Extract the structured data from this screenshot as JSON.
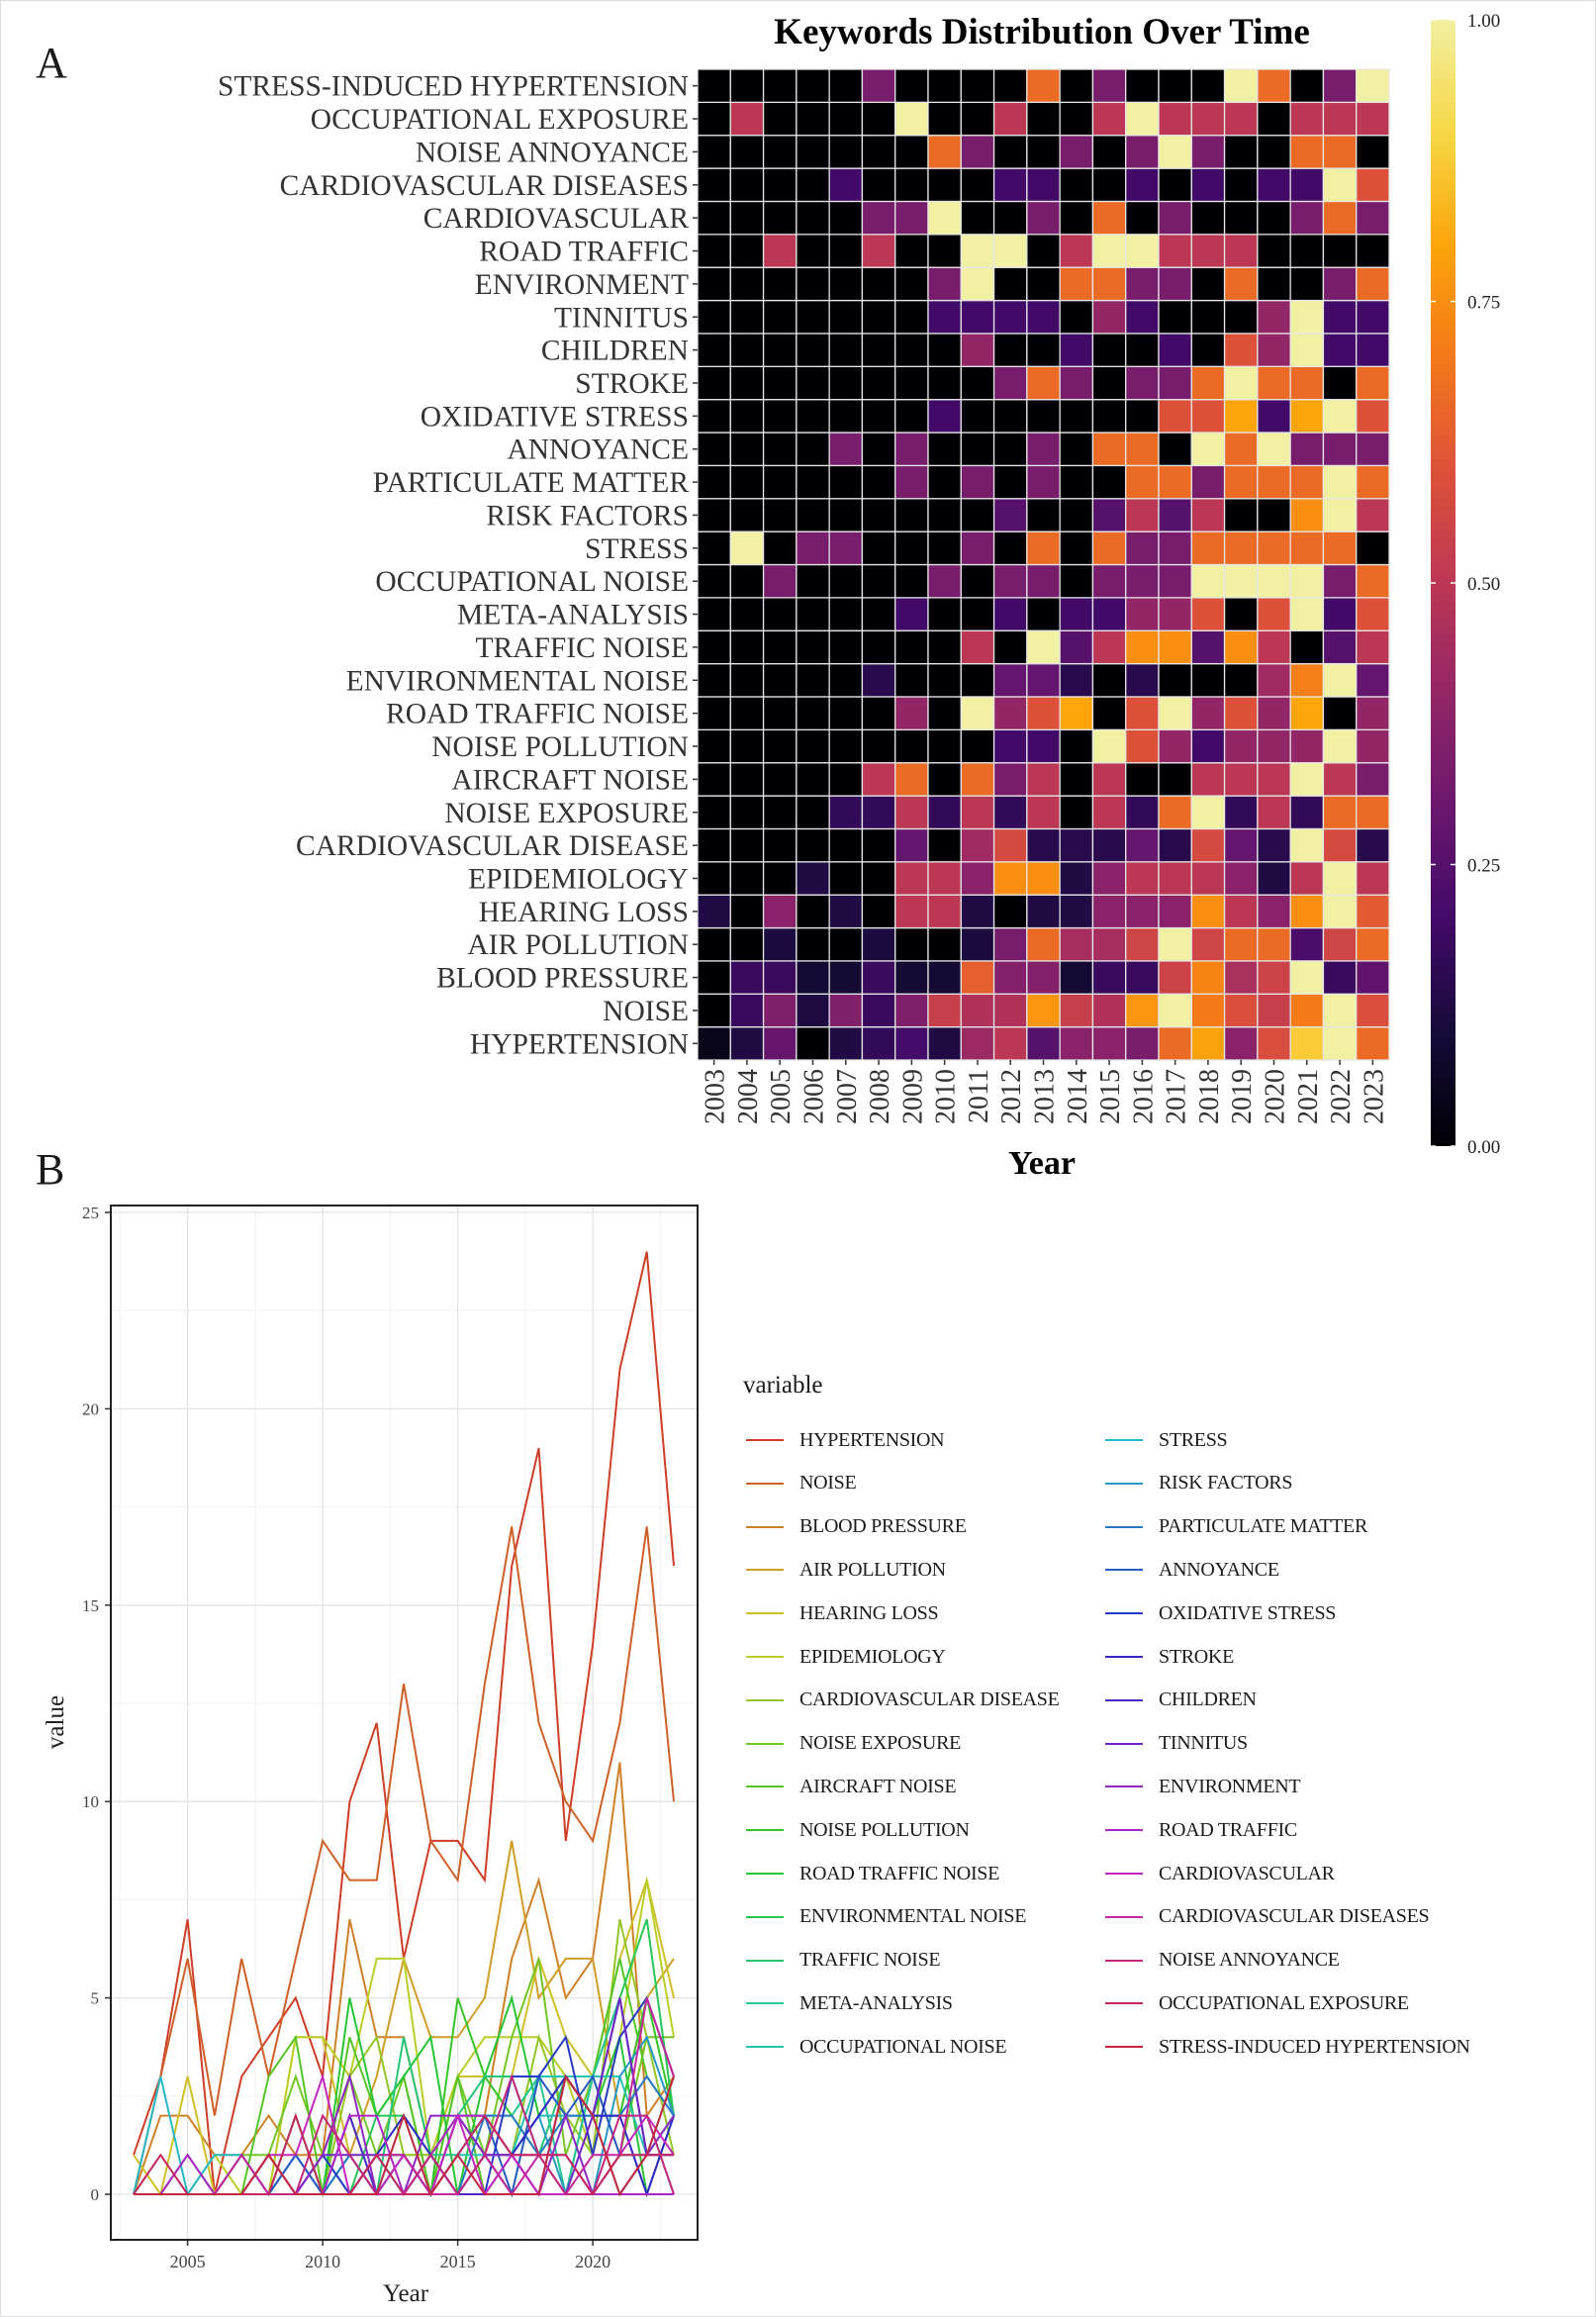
{
  "panels": {
    "a": "A",
    "b": "B"
  },
  "chart_data": [
    {
      "type": "heatmap",
      "title": "Keywords Distribution Over Time",
      "xlabel": "Year",
      "ylabel": "",
      "colorbar": {
        "ticks": [
          "0.00",
          "0.25",
          "0.50",
          "0.75",
          "1.00"
        ],
        "range": [
          0,
          1
        ],
        "palette": "inferno"
      },
      "note": "cell value = yearly count / series maximum (uses series in chart 2)"
    },
    {
      "type": "line",
      "xlabel": "Year",
      "ylabel": "value",
      "xlim": [
        2003,
        2023
      ],
      "ylim": [
        0,
        25
      ],
      "xticks": [
        "2005",
        "2010",
        "2015",
        "2020"
      ],
      "yticks": [
        "0",
        "5",
        "10",
        "15",
        "20",
        "25"
      ],
      "legend_title": "variable",
      "legend_position": "right",
      "grid": true
    }
  ],
  "years": [
    "2003",
    "2004",
    "2005",
    "2006",
    "2007",
    "2008",
    "2009",
    "2010",
    "2011",
    "2012",
    "2013",
    "2014",
    "2015",
    "2016",
    "2017",
    "2018",
    "2019",
    "2020",
    "2021",
    "2022",
    "2023"
  ],
  "series": [
    {
      "name": "HYPERTENSION",
      "values": [
        1,
        3,
        7,
        0,
        3,
        4,
        5,
        3,
        10,
        12,
        6,
        9,
        9,
        8,
        16,
        19,
        9,
        14,
        21,
        24,
        16
      ]
    },
    {
      "name": "NOISE",
      "values": [
        0,
        3,
        6,
        2,
        6,
        3,
        6,
        9,
        8,
        8,
        13,
        9,
        8,
        13,
        17,
        12,
        10,
        9,
        12,
        17,
        10
      ]
    },
    {
      "name": "BLOOD PRESSURE",
      "values": [
        0,
        2,
        2,
        1,
        1,
        2,
        1,
        1,
        7,
        4,
        4,
        1,
        2,
        2,
        6,
        8,
        5,
        6,
        11,
        2,
        3
      ]
    },
    {
      "name": "AIR POLLUTION",
      "values": [
        0,
        0,
        1,
        0,
        0,
        1,
        0,
        0,
        1,
        3,
        6,
        4,
        4,
        5,
        9,
        5,
        6,
        6,
        2,
        5,
        6
      ]
    },
    {
      "name": "HEARING LOSS",
      "values": [
        1,
        0,
        3,
        0,
        1,
        0,
        4,
        4,
        1,
        0,
        1,
        1,
        3,
        3,
        3,
        6,
        4,
        3,
        6,
        8,
        5
      ]
    },
    {
      "name": "EPIDEMIOLOGY",
      "values": [
        0,
        0,
        0,
        1,
        0,
        0,
        4,
        4,
        3,
        6,
        6,
        1,
        3,
        4,
        4,
        4,
        3,
        1,
        4,
        8,
        4
      ]
    },
    {
      "name": "CARDIOVASCULAR DISEASE",
      "values": [
        0,
        0,
        0,
        0,
        0,
        0,
        2,
        0,
        3,
        4,
        1,
        1,
        1,
        2,
        1,
        4,
        2,
        1,
        7,
        4,
        1
      ]
    },
    {
      "name": "NOISE EXPOSURE",
      "values": [
        0,
        0,
        0,
        0,
        1,
        1,
        3,
        1,
        3,
        1,
        3,
        0,
        3,
        1,
        4,
        6,
        1,
        3,
        1,
        4,
        4
      ]
    },
    {
      "name": "AIRCRAFT NOISE",
      "values": [
        0,
        0,
        0,
        0,
        0,
        3,
        4,
        0,
        4,
        2,
        3,
        0,
        3,
        0,
        0,
        3,
        3,
        3,
        6,
        3,
        2
      ]
    },
    {
      "name": "NOISE POLLUTION",
      "values": [
        0,
        0,
        0,
        0,
        0,
        0,
        0,
        0,
        0,
        1,
        1,
        0,
        5,
        3,
        2,
        1,
        2,
        2,
        2,
        5,
        2
      ]
    },
    {
      "name": "ROAD TRAFFIC NOISE",
      "values": [
        0,
        0,
        0,
        0,
        0,
        0,
        2,
        0,
        5,
        2,
        3,
        4,
        0,
        3,
        5,
        2,
        3,
        2,
        4,
        0,
        2
      ]
    },
    {
      "name": "ENVIRONMENTAL NOISE",
      "values": [
        0,
        0,
        0,
        0,
        0,
        1,
        0,
        0,
        0,
        2,
        2,
        1,
        0,
        1,
        0,
        0,
        0,
        3,
        5,
        7,
        2
      ]
    },
    {
      "name": "TRAFFIC NOISE",
      "values": [
        0,
        0,
        0,
        0,
        0,
        0,
        0,
        0,
        2,
        0,
        4,
        1,
        2,
        3,
        3,
        1,
        3,
        2,
        0,
        1,
        2
      ]
    },
    {
      "name": "META-ANALYSIS",
      "values": [
        0,
        0,
        0,
        0,
        0,
        0,
        1,
        0,
        0,
        1,
        0,
        1,
        1,
        2,
        2,
        3,
        0,
        3,
        5,
        1,
        3
      ]
    },
    {
      "name": "OCCUPATIONAL NOISE",
      "values": [
        0,
        0,
        1,
        0,
        0,
        0,
        0,
        1,
        0,
        1,
        1,
        0,
        1,
        1,
        1,
        3,
        3,
        3,
        3,
        1,
        2
      ]
    },
    {
      "name": "STRESS",
      "values": [
        0,
        3,
        0,
        1,
        1,
        0,
        0,
        0,
        1,
        0,
        2,
        0,
        2,
        1,
        1,
        2,
        2,
        2,
        2,
        2,
        0
      ]
    },
    {
      "name": "RISK FACTORS",
      "values": [
        0,
        0,
        0,
        0,
        0,
        0,
        0,
        0,
        0,
        1,
        0,
        0,
        1,
        2,
        1,
        2,
        0,
        0,
        3,
        4,
        2
      ]
    },
    {
      "name": "PARTICULATE MATTER",
      "values": [
        0,
        0,
        0,
        0,
        0,
        0,
        1,
        0,
        1,
        0,
        1,
        0,
        0,
        2,
        2,
        1,
        2,
        2,
        2,
        3,
        2
      ]
    },
    {
      "name": "ANNOYANCE",
      "values": [
        0,
        0,
        0,
        0,
        1,
        0,
        1,
        0,
        0,
        0,
        1,
        0,
        2,
        2,
        0,
        3,
        2,
        3,
        1,
        1,
        1
      ]
    },
    {
      "name": "OXIDATIVE STRESS",
      "values": [
        0,
        0,
        0,
        0,
        0,
        0,
        0,
        1,
        0,
        0,
        0,
        0,
        0,
        0,
        3,
        3,
        4,
        1,
        4,
        5,
        3
      ]
    },
    {
      "name": "STROKE",
      "values": [
        0,
        0,
        0,
        0,
        0,
        0,
        0,
        0,
        0,
        1,
        2,
        1,
        0,
        1,
        1,
        2,
        3,
        2,
        2,
        0,
        2
      ]
    },
    {
      "name": "CHILDREN",
      "values": [
        0,
        0,
        0,
        0,
        0,
        0,
        0,
        0,
        2,
        0,
        0,
        1,
        0,
        0,
        1,
        0,
        3,
        2,
        5,
        1,
        1
      ]
    },
    {
      "name": "TINNITUS",
      "values": [
        0,
        0,
        0,
        0,
        0,
        0,
        0,
        1,
        1,
        1,
        1,
        0,
        2,
        1,
        0,
        0,
        0,
        2,
        5,
        1,
        1
      ]
    },
    {
      "name": "ENVIRONMENT",
      "values": [
        0,
        0,
        0,
        0,
        0,
        0,
        0,
        1,
        3,
        0,
        0,
        2,
        2,
        1,
        1,
        0,
        2,
        0,
        0,
        1,
        2
      ]
    },
    {
      "name": "ROAD TRAFFIC",
      "values": [
        0,
        0,
        1,
        0,
        0,
        1,
        0,
        0,
        2,
        2,
        0,
        1,
        2,
        2,
        1,
        1,
        1,
        0,
        0,
        0,
        0
      ]
    },
    {
      "name": "CARDIOVASCULAR",
      "values": [
        0,
        0,
        0,
        0,
        0,
        1,
        1,
        3,
        0,
        0,
        1,
        0,
        2,
        0,
        1,
        0,
        0,
        0,
        1,
        2,
        1
      ]
    },
    {
      "name": "CARDIOVASCULAR DISEASES",
      "values": [
        0,
        0,
        0,
        0,
        1,
        0,
        0,
        0,
        0,
        1,
        1,
        0,
        0,
        1,
        0,
        1,
        0,
        1,
        1,
        5,
        3
      ]
    },
    {
      "name": "NOISE ANNOYANCE",
      "values": [
        0,
        0,
        0,
        0,
        0,
        0,
        0,
        2,
        1,
        0,
        0,
        1,
        0,
        1,
        3,
        1,
        0,
        0,
        2,
        2,
        0
      ]
    },
    {
      "name": "OCCUPATIONAL EXPOSURE",
      "values": [
        0,
        1,
        0,
        0,
        0,
        0,
        2,
        0,
        0,
        1,
        0,
        0,
        1,
        2,
        1,
        1,
        1,
        0,
        1,
        1,
        1
      ]
    },
    {
      "name": "STRESS-INDUCED HYPERTENSION",
      "values": [
        0,
        0,
        0,
        0,
        0,
        1,
        0,
        0,
        0,
        0,
        2,
        0,
        1,
        0,
        0,
        0,
        3,
        2,
        0,
        1,
        3
      ]
    }
  ]
}
